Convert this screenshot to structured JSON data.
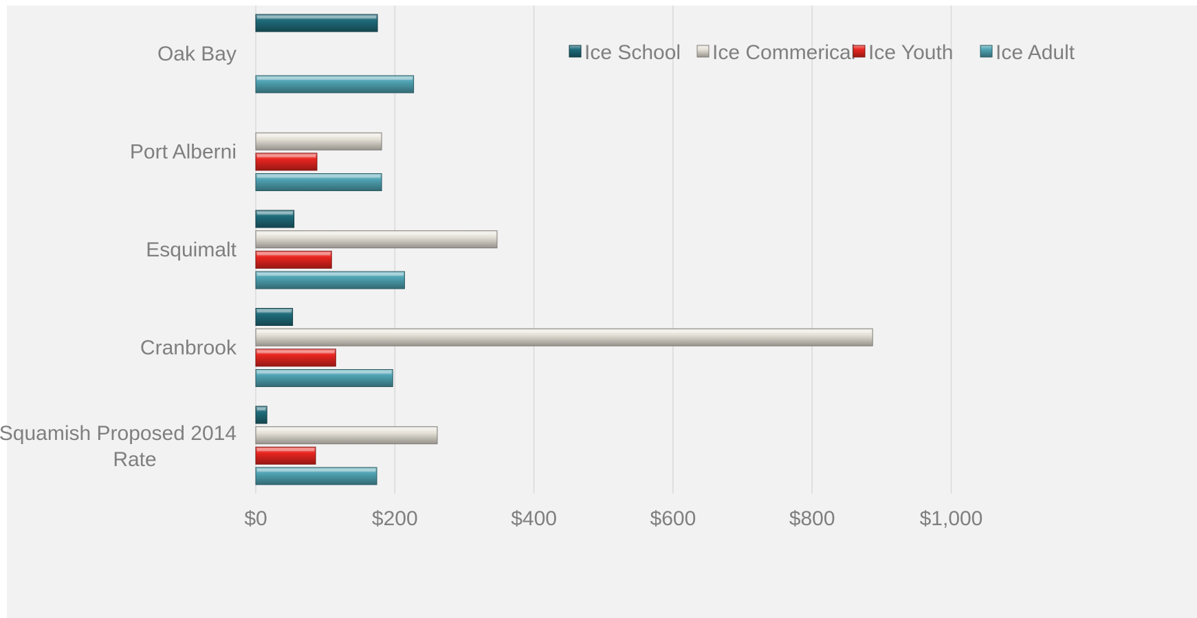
{
  "chart_data": {
    "type": "bar",
    "orientation": "horizontal",
    "categories": [
      "Oak Bay",
      "Port Alberni",
      "Esquimalt",
      "Cranbrook",
      "Squamish Proposed 2014 Rate"
    ],
    "series": [
      {
        "name": "Ice School",
        "color": "#1f6b7a",
        "values": [
          175,
          null,
          55,
          53,
          16
        ]
      },
      {
        "name": "Ice Commerical",
        "color": "#e6e2d8",
        "values": [
          null,
          181,
          347,
          887,
          261
        ]
      },
      {
        "name": "Ice Youth",
        "color": "#e8251f",
        "values": [
          null,
          88,
          109,
          115,
          86
        ]
      },
      {
        "name": "Ice Adult",
        "color": "#4fa3b3",
        "values": [
          227,
          181,
          214,
          197,
          174
        ]
      }
    ],
    "xlim": [
      0,
      1160
    ],
    "xticks": [
      0,
      200,
      400,
      600,
      800,
      1000
    ],
    "xtick_labels": [
      "$0",
      "$200",
      "$400",
      "$600",
      "$800",
      "$1,000"
    ],
    "grid": "vertical",
    "legend_position": "top-right",
    "title": "",
    "xlabel": "",
    "ylabel": ""
  }
}
